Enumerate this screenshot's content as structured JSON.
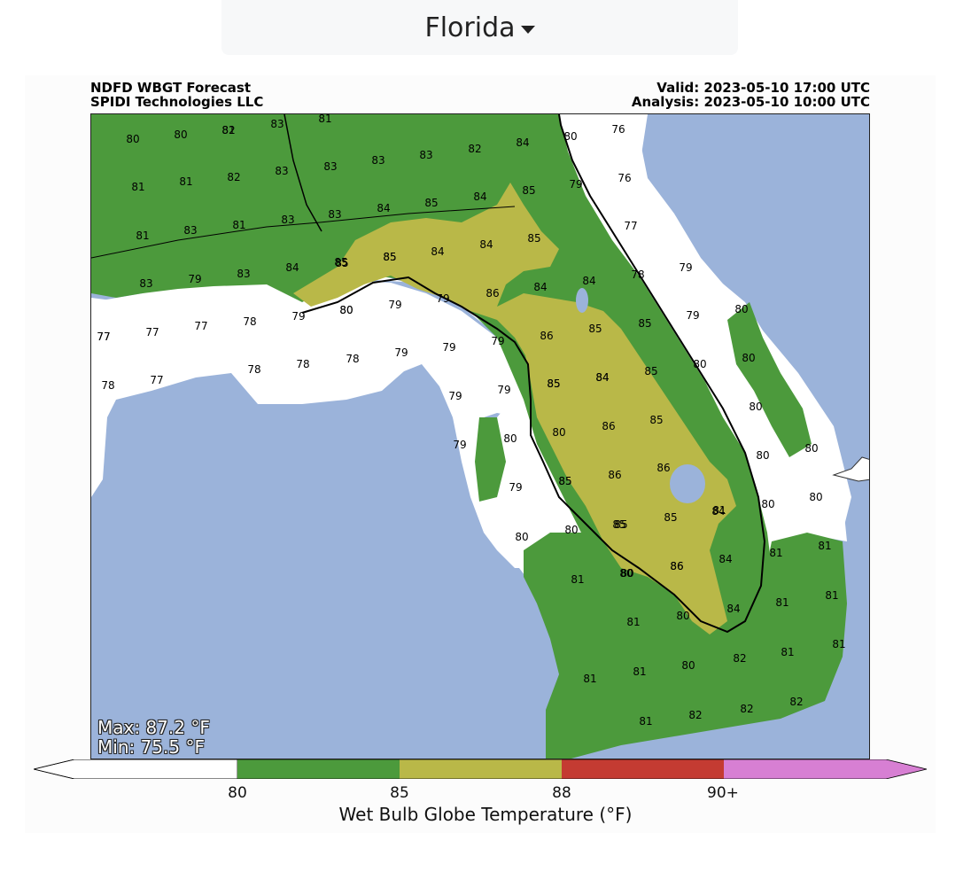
{
  "region_selector": {
    "selected": "Florida"
  },
  "header": {
    "title_line1": "NDFD WBGT Forecast",
    "title_line2": "SPIDI Technologies LLC",
    "valid": "Valid: 2023-05-10 17:00 UTC",
    "analysis": "Analysis: 2023-05-10 10:00 UTC"
  },
  "stats": {
    "max": "Max: 87.2 °F",
    "min": "Min: 75.5 °F"
  },
  "colorbar": {
    "label": "Wet Bulb Globe Temperature (°F)",
    "ticks": [
      "80",
      "85",
      "88",
      "90+"
    ],
    "colors": {
      "below_80": "#ffffff",
      "80_85": "#4c9a3c",
      "85_88": "#b9b848",
      "88_90": "#c43b32",
      "90_plus": "#d77fd3"
    }
  },
  "map_colors": {
    "water": "#9bb3da",
    "land_cool": "#ffffff",
    "land_warm": "#4c9a3c",
    "land_hot": "#b9b848"
  },
  "map_labels": [
    "80",
    "80",
    "81",
    "83",
    "81",
    "82",
    "80",
    "76",
    "83",
    "83",
    "83",
    "82",
    "84",
    "79",
    "76",
    "81",
    "81",
    "82",
    "83",
    "83",
    "84",
    "85",
    "84",
    "85",
    "81",
    "83",
    "81",
    "83",
    "85",
    "85",
    "84",
    "85",
    "84",
    "77",
    "84",
    "85",
    "85",
    "78",
    "79",
    "83",
    "79",
    "83",
    "80",
    "79",
    "80",
    "79",
    "79",
    "86",
    "84",
    "84",
    "80",
    "77",
    "77",
    "77",
    "78",
    "79",
    "79",
    "86",
    "85",
    "85",
    "79",
    "78",
    "77",
    "78",
    "78",
    "78",
    "79",
    "85",
    "84",
    "85",
    "80",
    "80",
    "77",
    "79",
    "79",
    "85",
    "84",
    "80",
    "85",
    "86",
    "80",
    "79",
    "80",
    "80",
    "86",
    "85",
    "80",
    "86",
    "80",
    "79",
    "85",
    "86",
    "85",
    "84",
    "80",
    "80",
    "80",
    "80",
    "85",
    "85",
    "81",
    "81",
    "81",
    "80",
    "86",
    "84",
    "81",
    "81",
    "81",
    "80",
    "84",
    "81",
    "80",
    "81",
    "82",
    "81",
    "81",
    "81",
    "82",
    "82",
    "82",
    "81"
  ]
}
